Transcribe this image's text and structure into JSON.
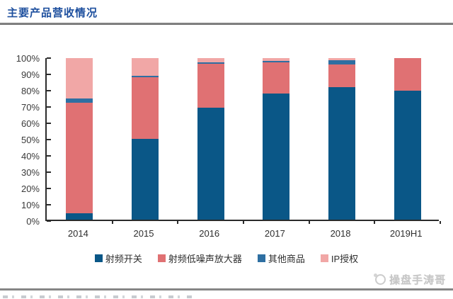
{
  "title": "主要产品营收情况",
  "watermark": {
    "text": "操盘手涛哥",
    "icon": "circle-logo"
  },
  "colors": {
    "title_blue": "#1d4f9e",
    "axis": "#2b2b2b",
    "rf_switch": "#0a5787",
    "rf_lna": "#e07173",
    "other_goods": "#2e6fa2",
    "ip_license": "#f1a7a6"
  },
  "chart_data": {
    "type": "bar",
    "stacked": true,
    "unit": "%",
    "categories": [
      "2014",
      "2015",
      "2016",
      "2017",
      "2018",
      "2019H1"
    ],
    "series": [
      {
        "name": "射频开关",
        "color": "#0a5787",
        "values": [
          4,
          50,
          69.5,
          78,
          82,
          80
        ]
      },
      {
        "name": "射频低噪声放大器",
        "color": "#e07173",
        "values": [
          68.5,
          38,
          27,
          19.5,
          14,
          20
        ]
      },
      {
        "name": "其他商品",
        "color": "#2e6fa2",
        "values": [
          2.5,
          1,
          1,
          0.7,
          2.5,
          0
        ]
      },
      {
        "name": "IP授权",
        "color": "#f1a7a6",
        "values": [
          25,
          11,
          2.5,
          1.8,
          1.5,
          0
        ]
      }
    ],
    "y_ticks": [
      "100%",
      "90%",
      "80%",
      "70%",
      "60%",
      "50%",
      "40%",
      "30%",
      "20%",
      "10%",
      "0%"
    ],
    "ylim": [
      0,
      100
    ],
    "grid": false,
    "legend_position": "bottom"
  }
}
